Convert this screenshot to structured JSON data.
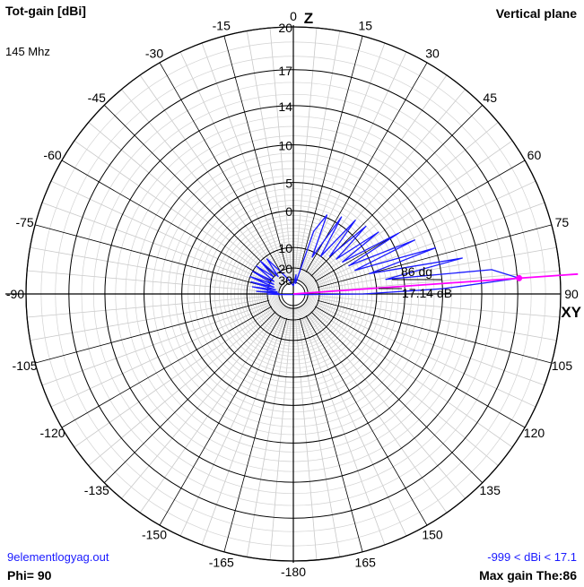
{
  "header": {
    "quantity": "Tot-gain [dBi]",
    "frequency": "145 Mhz",
    "plane": "Vertical plane"
  },
  "footer": {
    "filename": "9elementlogyag.out",
    "phi": "Phi= 90",
    "range": "-999 < dBi < 17.1",
    "max_gain": "Max gain The:86"
  },
  "chart_data": {
    "type": "polar",
    "title": "Tot-gain [dBi]",
    "axis_labels": {
      "top": "Z",
      "right": "XY"
    },
    "angle_ticks": [
      "0",
      "15",
      "30",
      "45",
      "60",
      "75",
      "90",
      "105",
      "120",
      "135",
      "150",
      "165",
      "-180",
      "-165",
      "-150",
      "-135",
      "-120",
      "-105",
      "-90",
      "-75",
      "-60",
      "-45",
      "-30",
      "-15"
    ],
    "radial_ticks": [
      "20",
      "17",
      "14",
      "10",
      "5",
      "0",
      "10",
      "20",
      "30"
    ],
    "radial_tick_values": [
      20,
      17,
      14,
      10,
      5,
      0,
      -10,
      -20,
      -30
    ],
    "max_marker": {
      "angle_label": "86 dg",
      "gain_label": "17.14 dB",
      "angle_deg": 86,
      "gain_dbi": 17.14
    },
    "colors": {
      "pattern": "#1a1aff",
      "max_gain_line": "#ff00ff",
      "grid": "#000000"
    },
    "pattern": {
      "unit": "dBi",
      "points": [
        {
          "theta": 0,
          "gain": -40
        },
        {
          "theta": 8,
          "gain": -25
        },
        {
          "theta": 12,
          "gain": -35
        },
        {
          "theta": 18,
          "gain": -4
        },
        {
          "theta": 23,
          "gain": 0.5
        },
        {
          "theta": 27,
          "gain": -12
        },
        {
          "theta": 32,
          "gain": 1.5
        },
        {
          "theta": 36,
          "gain": -10
        },
        {
          "theta": 40,
          "gain": 2.5
        },
        {
          "theta": 44,
          "gain": -8
        },
        {
          "theta": 47,
          "gain": 3
        },
        {
          "theta": 51,
          "gain": -7
        },
        {
          "theta": 54,
          "gain": 4
        },
        {
          "theta": 57,
          "gain": -6
        },
        {
          "theta": 60,
          "gain": 6.5
        },
        {
          "theta": 63,
          "gain": -5
        },
        {
          "theta": 66,
          "gain": 8
        },
        {
          "theta": 69,
          "gain": -4
        },
        {
          "theta": 72,
          "gain": 10
        },
        {
          "theta": 75,
          "gain": -1
        },
        {
          "theta": 78,
          "gain": 12.5
        },
        {
          "theta": 81,
          "gain": 2
        },
        {
          "theta": 83,
          "gain": 15
        },
        {
          "theta": 86,
          "gain": 17.14
        },
        {
          "theta": 88,
          "gain": 10
        },
        {
          "theta": 90,
          "gain": -3
        },
        {
          "theta": 92,
          "gain": -30
        },
        {
          "theta": 268,
          "gain": -30
        },
        {
          "theta": 270,
          "gain": -20
        },
        {
          "theta": 272,
          "gain": -30
        },
        {
          "theta": 274,
          "gain": -14
        },
        {
          "theta": 277,
          "gain": -28
        },
        {
          "theta": 280,
          "gain": -12
        },
        {
          "theta": 283,
          "gain": -26
        },
        {
          "theta": 286,
          "gain": -11
        },
        {
          "theta": 289,
          "gain": -24
        },
        {
          "theta": 292,
          "gain": -10
        },
        {
          "theta": 296,
          "gain": -23
        },
        {
          "theta": 299,
          "gain": -10
        },
        {
          "theta": 303,
          "gain": -22
        },
        {
          "theta": 307,
          "gain": -10
        },
        {
          "theta": 311,
          "gain": -20
        },
        {
          "theta": 315,
          "gain": -10
        },
        {
          "theta": 319,
          "gain": -22
        },
        {
          "theta": 323,
          "gain": -11
        },
        {
          "theta": 330,
          "gain": -20
        },
        {
          "theta": 340,
          "gain": -28
        },
        {
          "theta": 350,
          "gain": -35
        },
        {
          "theta": 360,
          "gain": -40
        }
      ]
    }
  }
}
